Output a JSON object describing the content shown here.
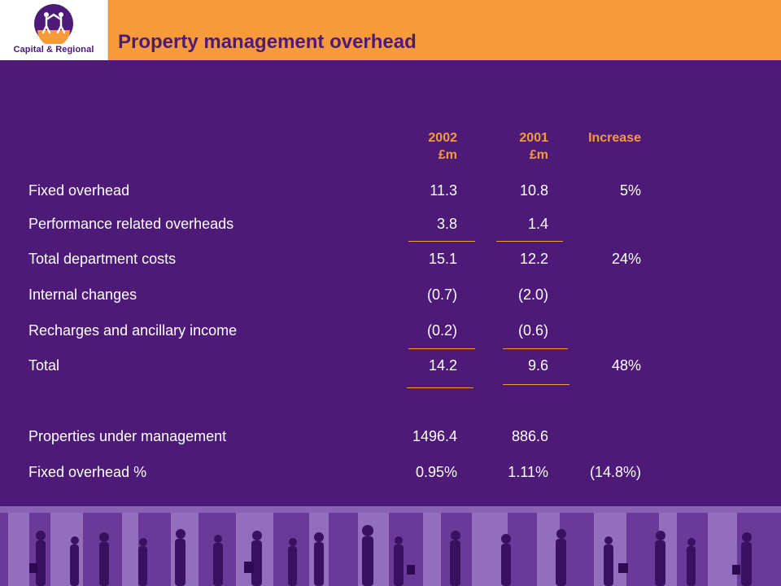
{
  "header": {
    "logo_text": "Capital & Regional",
    "title": "Property management overhead"
  },
  "columns": [
    {
      "line1": "2002",
      "line2": "£m"
    },
    {
      "line1": "2001",
      "line2": "£m"
    },
    {
      "line1": "Increase",
      "line2": ""
    }
  ],
  "rows": [
    {
      "label": "Fixed overhead",
      "v2002": "11.3",
      "v2001": "10.8",
      "increase": "5%"
    },
    {
      "label": "Performance related overheads",
      "v2002": "3.8",
      "v2001": "1.4",
      "increase": ""
    },
    {
      "label": "Total department costs",
      "v2002": "15.1",
      "v2001": "12.2",
      "increase": "24%"
    },
    {
      "label": "Internal changes",
      "v2002": "(0.7)",
      "v2001": "(2.0)",
      "increase": ""
    },
    {
      "label": "Recharges and ancillary income",
      "v2002": "(0.2)",
      "v2001": "(0.6)",
      "increase": ""
    },
    {
      "label": "Total",
      "v2002": "14.2",
      "v2001": "9.6",
      "increase": "48%"
    },
    {
      "label": "Properties under management",
      "v2002": "1496.4",
      "v2001": "886.6",
      "increase": ""
    },
    {
      "label": "Fixed overhead %",
      "v2002": "0.95%",
      "v2001": "1.11%",
      "increase": "(14.8%)"
    }
  ],
  "colors": {
    "background": "#4d1a78",
    "accent": "#f79a3c",
    "text": "#ffffff"
  }
}
